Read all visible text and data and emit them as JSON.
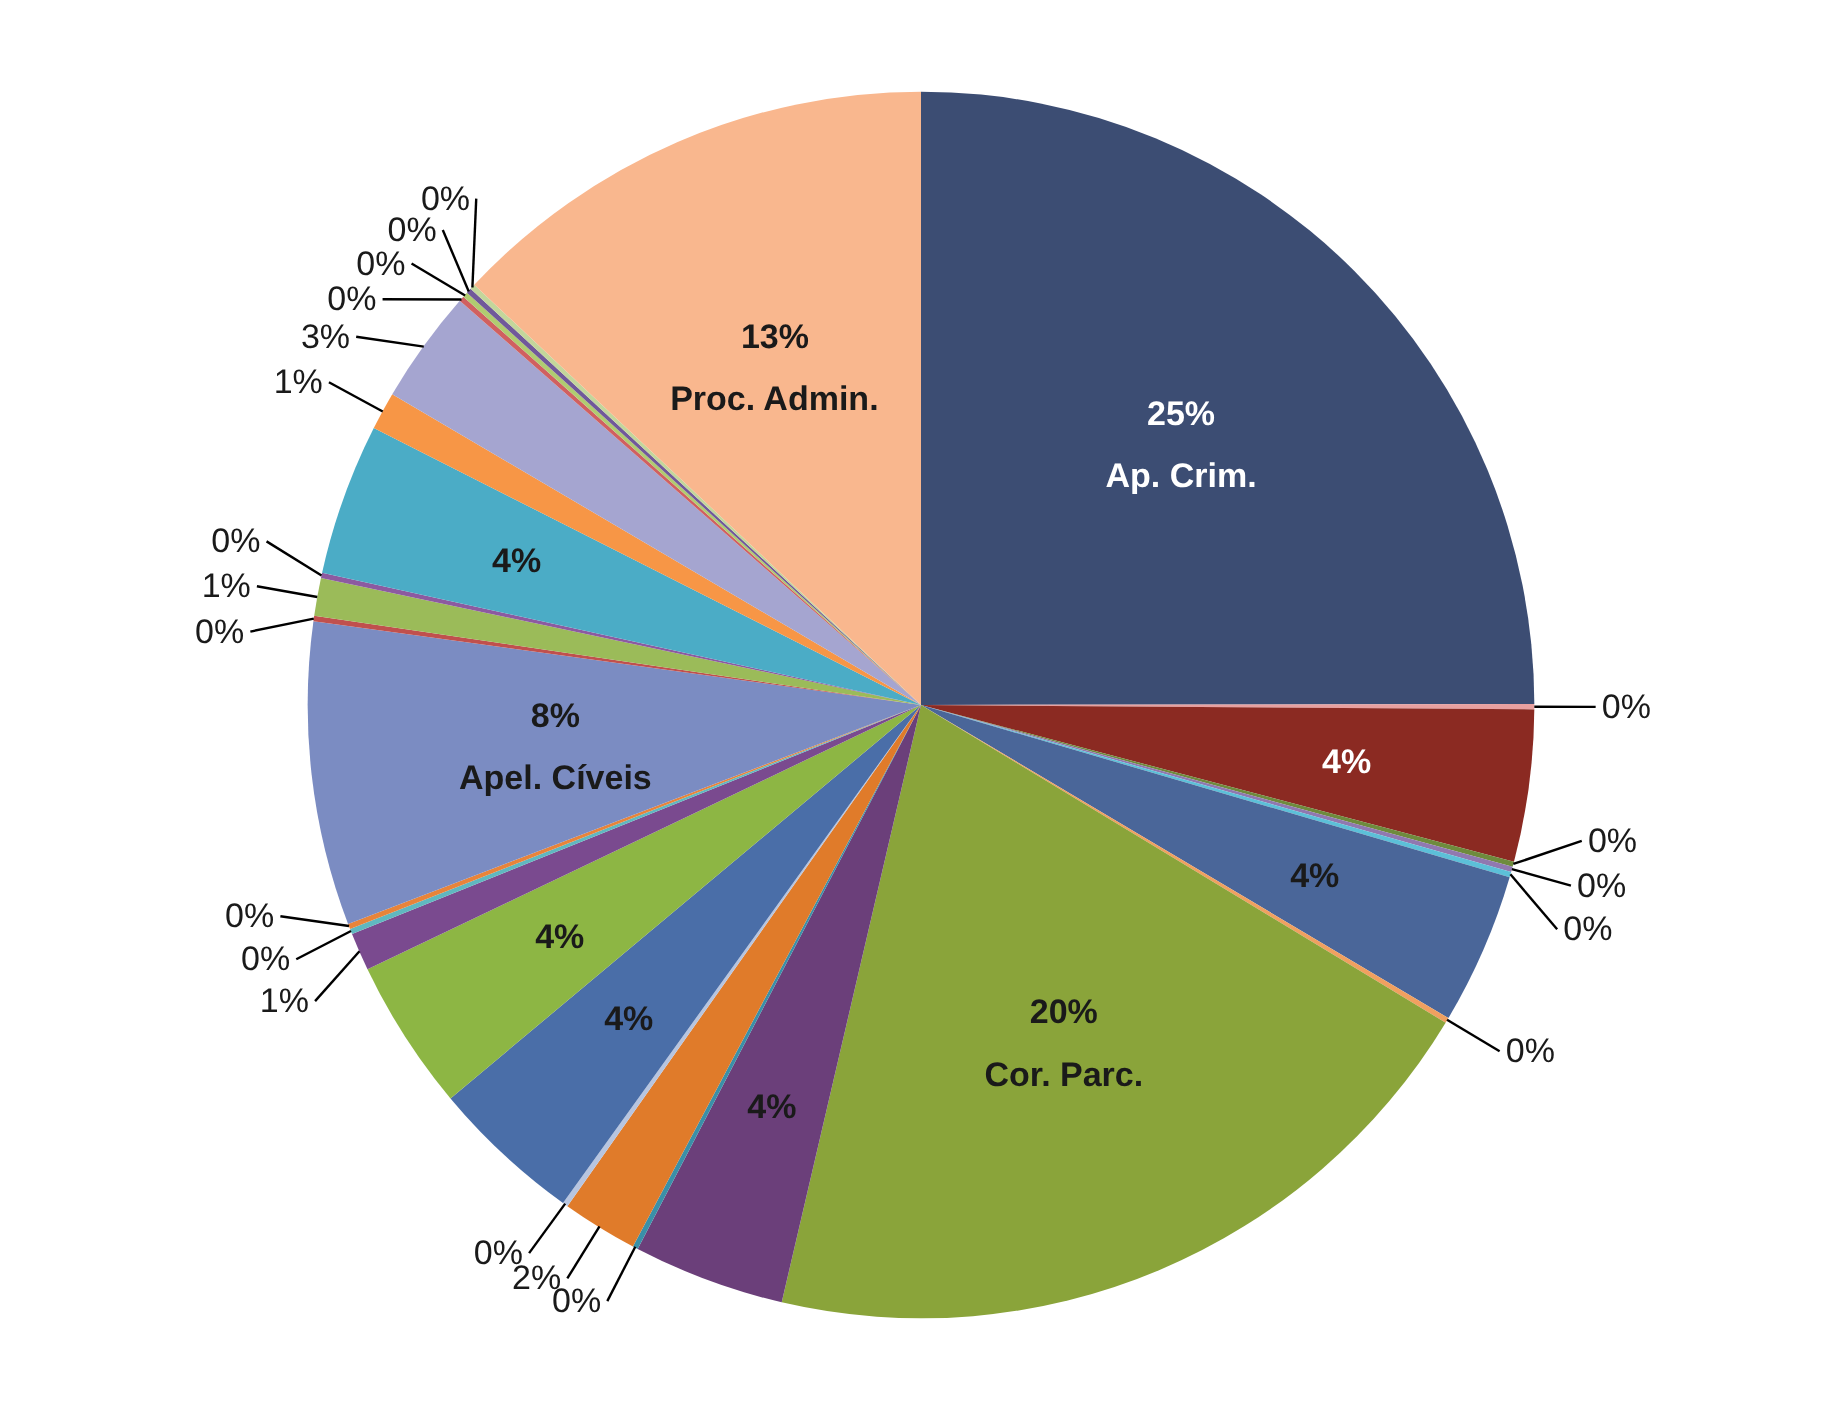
{
  "chart_data": {
    "type": "pie",
    "categories": [
      "Ap. Crim.",
      null,
      null,
      null,
      null,
      null,
      null,
      null,
      "Cor. Parc.",
      null,
      null,
      null,
      null,
      null,
      null,
      null,
      null,
      null,
      "Apel. Cíveis",
      null,
      null,
      null,
      null,
      null,
      null,
      null,
      null,
      null,
      null,
      "Proc. Admin."
    ],
    "values": [
      25,
      0.14,
      4,
      0.14,
      0.14,
      0.14,
      4,
      0.14,
      20,
      4,
      0.14,
      2,
      0.14,
      4,
      4,
      1,
      0.14,
      0.14,
      8,
      0.14,
      1,
      0.14,
      4,
      1,
      3,
      0.14,
      0.14,
      0.14,
      0.14,
      13
    ],
    "value_labels": [
      "25%",
      "0%",
      "4%",
      "0%",
      "0%",
      "0%",
      "4%",
      "0%",
      "20%",
      "4%",
      "0%",
      "2%",
      "0%",
      "4%",
      "4%",
      "1%",
      "0%",
      "0%",
      "8%",
      "0%",
      "1%",
      "0%",
      "4%",
      "1%",
      "3%",
      "0%",
      "0%",
      "0%",
      "0%",
      "13%"
    ],
    "colors": [
      "#3c4d73",
      "#e8a0a0",
      "#8b2a22",
      "#6e8b3d",
      "#9078b0",
      "#5cc0d8",
      "#4a6699",
      "#f0a060",
      "#8aa43a",
      "#6b3f7a",
      "#3a90a8",
      "#e07b2a",
      "#b7c5e0",
      "#4a6ea8",
      "#8db644",
      "#7a4a8f",
      "#60b8c0",
      "#e8843a",
      "#7b8cc2",
      "#c0504d",
      "#9bbb59",
      "#8c5aa0",
      "#4bacc6",
      "#f79646",
      "#a5a5d0",
      "#d06060",
      "#b0cc70",
      "#70589a",
      "#c3d69b",
      "#f9b78e"
    ]
  }
}
